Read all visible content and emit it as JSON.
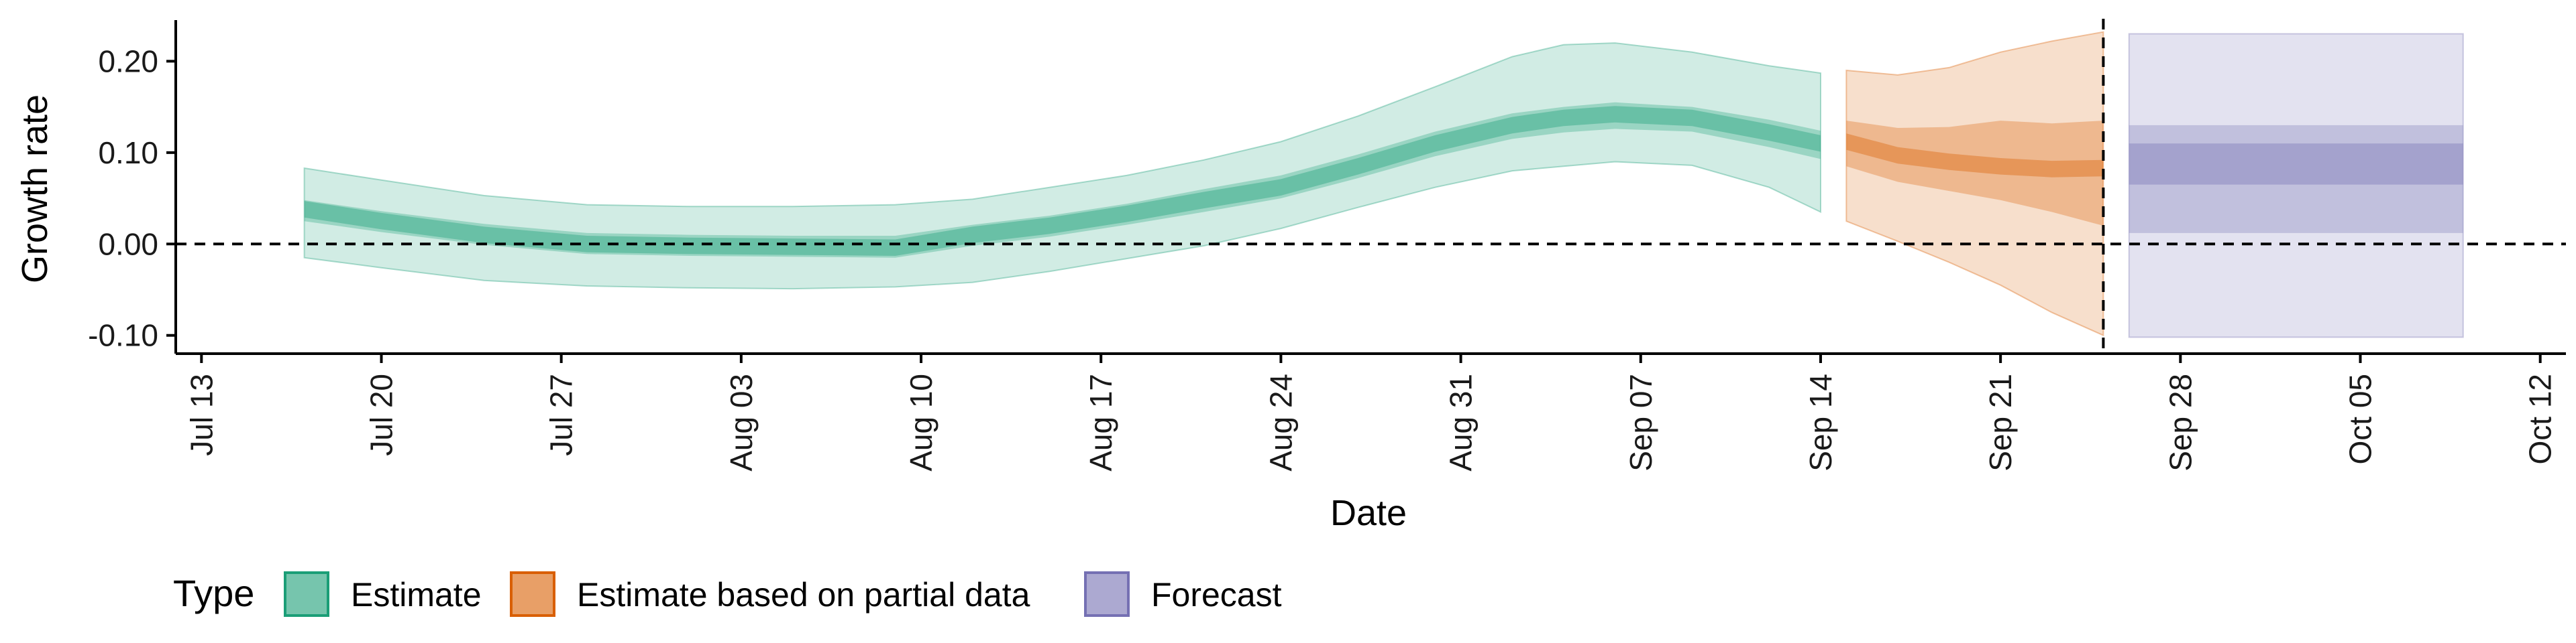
{
  "chart_data": {
    "type": "area",
    "xlabel": "Date",
    "ylabel": "Growth rate",
    "ylim": [
      -0.12,
      0.245
    ],
    "xlim": [
      "2020-07-12",
      "2020-10-13"
    ],
    "x_ticks": [
      "Jul 13",
      "Jul 20",
      "Jul 27",
      "Aug 03",
      "Aug 10",
      "Aug 17",
      "Aug 24",
      "Aug 31",
      "Sep 07",
      "Sep 14",
      "Sep 21",
      "Sep 28",
      "Oct 05",
      "Oct 12"
    ],
    "x_tick_dates": [
      "2020-07-13",
      "2020-07-20",
      "2020-07-27",
      "2020-08-03",
      "2020-08-10",
      "2020-08-17",
      "2020-08-24",
      "2020-08-31",
      "2020-09-07",
      "2020-09-14",
      "2020-09-21",
      "2020-09-28",
      "2020-10-05",
      "2020-10-12"
    ],
    "y_ticks": [
      -0.1,
      0.0,
      0.1,
      0.2
    ],
    "y_tick_labels": [
      "-0.10",
      "0.00",
      "0.10",
      "0.20"
    ],
    "reference_lines": {
      "horizontal_y": 0.0,
      "vertical_date": "2020-09-25"
    },
    "grid": false,
    "legend": {
      "title": "Type",
      "position": "bottom",
      "entries": [
        {
          "label": "Estimate",
          "color": "#1b9e77"
        },
        {
          "label": "Estimate based on partial data",
          "color": "#d95f02"
        },
        {
          "label": "Forecast",
          "color": "#7570b3"
        }
      ]
    },
    "series": [
      {
        "name": "Estimate",
        "color": "#1b9e77",
        "points": [
          {
            "date": "2020-07-17",
            "median": 0.038,
            "lo50": 0.025,
            "hi50": 0.048,
            "lo90": -0.015,
            "hi90": 0.083
          },
          {
            "date": "2020-07-20",
            "median": 0.025,
            "lo50": 0.013,
            "hi50": 0.036,
            "lo90": -0.026,
            "hi90": 0.07
          },
          {
            "date": "2020-07-24",
            "median": 0.01,
            "lo50": -0.001,
            "hi50": 0.022,
            "lo90": -0.04,
            "hi90": 0.053
          },
          {
            "date": "2020-07-28",
            "median": 0.0,
            "lo50": -0.011,
            "hi50": 0.012,
            "lo90": -0.046,
            "hi90": 0.043
          },
          {
            "date": "2020-08-01",
            "median": -0.002,
            "lo50": -0.013,
            "hi50": 0.01,
            "lo90": -0.048,
            "hi90": 0.041
          },
          {
            "date": "2020-08-05",
            "median": -0.003,
            "lo50": -0.014,
            "hi50": 0.009,
            "lo90": -0.049,
            "hi90": 0.041
          },
          {
            "date": "2020-08-09",
            "median": -0.004,
            "lo50": -0.015,
            "hi50": 0.009,
            "lo90": -0.047,
            "hi90": 0.043
          },
          {
            "date": "2020-08-12",
            "median": 0.01,
            "lo50": -0.002,
            "hi50": 0.021,
            "lo90": -0.042,
            "hi90": 0.049
          },
          {
            "date": "2020-08-15",
            "median": 0.02,
            "lo50": 0.008,
            "hi50": 0.031,
            "lo90": -0.03,
            "hi90": 0.062
          },
          {
            "date": "2020-08-18",
            "median": 0.033,
            "lo50": 0.021,
            "hi50": 0.044,
            "lo90": -0.016,
            "hi90": 0.075
          },
          {
            "date": "2020-08-21",
            "median": 0.048,
            "lo50": 0.035,
            "hi50": 0.06,
            "lo90": -0.002,
            "hi90": 0.092
          },
          {
            "date": "2020-08-24",
            "median": 0.062,
            "lo50": 0.05,
            "hi50": 0.075,
            "lo90": 0.017,
            "hi90": 0.112
          },
          {
            "date": "2020-08-27",
            "median": 0.085,
            "lo50": 0.072,
            "hi50": 0.098,
            "lo90": 0.04,
            "hi90": 0.14
          },
          {
            "date": "2020-08-30",
            "median": 0.11,
            "lo50": 0.096,
            "hi50": 0.123,
            "lo90": 0.062,
            "hi90": 0.172
          },
          {
            "date": "2020-09-02",
            "median": 0.13,
            "lo50": 0.115,
            "hi50": 0.143,
            "lo90": 0.08,
            "hi90": 0.205
          },
          {
            "date": "2020-09-04",
            "median": 0.138,
            "lo50": 0.122,
            "hi50": 0.15,
            "lo90": 0.085,
            "hi90": 0.218
          },
          {
            "date": "2020-09-06",
            "median": 0.142,
            "lo50": 0.126,
            "hi50": 0.155,
            "lo90": 0.09,
            "hi90": 0.22
          },
          {
            "date": "2020-09-09",
            "median": 0.138,
            "lo50": 0.123,
            "hi50": 0.15,
            "lo90": 0.086,
            "hi90": 0.21
          },
          {
            "date": "2020-09-12",
            "median": 0.122,
            "lo50": 0.106,
            "hi50": 0.136,
            "lo90": 0.062,
            "hi90": 0.195
          },
          {
            "date": "2020-09-14",
            "median": 0.11,
            "lo50": 0.093,
            "hi50": 0.124,
            "lo90": 0.035,
            "hi90": 0.187
          }
        ]
      },
      {
        "name": "Estimate based on partial data",
        "color": "#d95f02",
        "points": [
          {
            "date": "2020-09-15",
            "median": 0.112,
            "lo50": 0.085,
            "hi50": 0.135,
            "lo90": 0.025,
            "hi90": 0.19
          },
          {
            "date": "2020-09-17",
            "median": 0.097,
            "lo50": 0.068,
            "hi50": 0.127,
            "lo90": 0.003,
            "hi90": 0.185
          },
          {
            "date": "2020-09-19",
            "median": 0.09,
            "lo50": 0.058,
            "hi50": 0.128,
            "lo90": -0.02,
            "hi90": 0.193
          },
          {
            "date": "2020-09-21",
            "median": 0.085,
            "lo50": 0.048,
            "hi50": 0.135,
            "lo90": -0.045,
            "hi90": 0.21
          },
          {
            "date": "2020-09-23",
            "median": 0.082,
            "lo50": 0.035,
            "hi50": 0.132,
            "lo90": -0.075,
            "hi90": 0.222
          },
          {
            "date": "2020-09-25",
            "median": 0.083,
            "lo50": 0.02,
            "hi50": 0.135,
            "lo90": -0.1,
            "hi90": 0.232
          }
        ]
      },
      {
        "name": "Forecast",
        "color": "#7570b3",
        "points": [
          {
            "date": "2020-09-26",
            "lo_inner": 0.065,
            "hi_inner": 0.11,
            "lo50": 0.012,
            "hi50": 0.13,
            "lo90": -0.102,
            "hi90": 0.23
          },
          {
            "date": "2020-10-09",
            "lo_inner": 0.065,
            "hi_inner": 0.11,
            "lo50": 0.012,
            "hi50": 0.13,
            "lo90": -0.102,
            "hi90": 0.23
          }
        ]
      }
    ]
  }
}
